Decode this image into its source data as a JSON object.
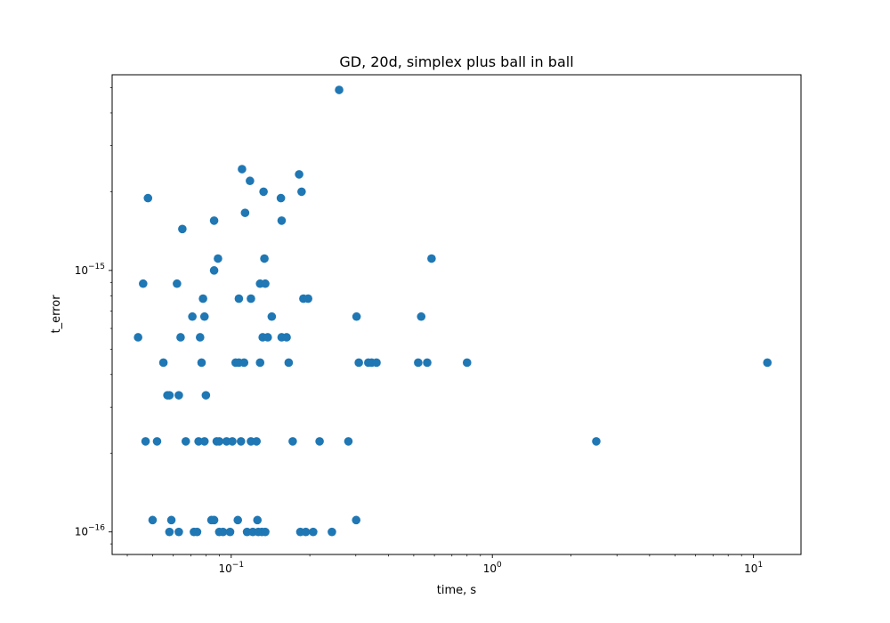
{
  "chart_data": {
    "type": "scatter",
    "title": "GD, 20d, simplex plus ball in ball",
    "xlabel": "time, s",
    "ylabel": "t_error",
    "xscale": "log",
    "yscale": "log",
    "xlim": [
      0.035,
      15.2
    ],
    "ylim": [
      8.2e-17,
      5.6e-15
    ],
    "grid": false,
    "marker_color": "#1f77b4",
    "x_ticks": [
      {
        "value": 0.1,
        "base": "10",
        "exp": "−1"
      },
      {
        "value": 1,
        "base": "10",
        "exp": "0"
      },
      {
        "value": 10,
        "base": "10",
        "exp": "1"
      }
    ],
    "y_ticks": [
      {
        "value": 1e-16,
        "base": "10",
        "exp": "−16"
      },
      {
        "value": 1e-15,
        "base": "10",
        "exp": "−15"
      }
    ],
    "points": [
      {
        "x": 0.044,
        "y": 5.55e-16
      },
      {
        "x": 0.046,
        "y": 8.9e-16
      },
      {
        "x": 0.047,
        "y": 2.22e-16
      },
      {
        "x": 0.048,
        "y": 1.89e-15
      },
      {
        "x": 0.05,
        "y": 1.11e-16
      },
      {
        "x": 0.052,
        "y": 2.22e-16
      },
      {
        "x": 0.055,
        "y": 4.44e-16
      },
      {
        "x": 0.057,
        "y": 3.33e-16
      },
      {
        "x": 0.058,
        "y": 1e-16
      },
      {
        "x": 0.058,
        "y": 3.33e-16
      },
      {
        "x": 0.059,
        "y": 1.11e-16
      },
      {
        "x": 0.062,
        "y": 8.9e-16
      },
      {
        "x": 0.063,
        "y": 1e-16
      },
      {
        "x": 0.063,
        "y": 3.33e-16
      },
      {
        "x": 0.064,
        "y": 5.55e-16
      },
      {
        "x": 0.065,
        "y": 1.44e-15
      },
      {
        "x": 0.067,
        "y": 2.22e-16
      },
      {
        "x": 0.071,
        "y": 6.66e-16
      },
      {
        "x": 0.072,
        "y": 1e-16
      },
      {
        "x": 0.074,
        "y": 1e-16
      },
      {
        "x": 0.075,
        "y": 2.22e-16
      },
      {
        "x": 0.076,
        "y": 5.55e-16
      },
      {
        "x": 0.077,
        "y": 4.44e-16
      },
      {
        "x": 0.078,
        "y": 7.8e-16
      },
      {
        "x": 0.079,
        "y": 6.66e-16
      },
      {
        "x": 0.08,
        "y": 3.33e-16
      },
      {
        "x": 0.079,
        "y": 2.22e-16
      },
      {
        "x": 0.084,
        "y": 1.11e-16
      },
      {
        "x": 0.086,
        "y": 1e-15
      },
      {
        "x": 0.086,
        "y": 1.55e-15
      },
      {
        "x": 0.086,
        "y": 1.11e-16
      },
      {
        "x": 0.088,
        "y": 2.22e-16
      },
      {
        "x": 0.089,
        "y": 1.11e-15
      },
      {
        "x": 0.09,
        "y": 2.22e-16
      },
      {
        "x": 0.09,
        "y": 1e-16
      },
      {
        "x": 0.093,
        "y": 1e-16
      },
      {
        "x": 0.096,
        "y": 2.22e-16
      },
      {
        "x": 0.099,
        "y": 1e-16
      },
      {
        "x": 0.101,
        "y": 2.22e-16
      },
      {
        "x": 0.104,
        "y": 4.44e-16
      },
      {
        "x": 0.106,
        "y": 1.11e-16
      },
      {
        "x": 0.107,
        "y": 7.8e-16
      },
      {
        "x": 0.107,
        "y": 4.44e-16
      },
      {
        "x": 0.109,
        "y": 2.22e-16
      },
      {
        "x": 0.11,
        "y": 2.44e-15
      },
      {
        "x": 0.112,
        "y": 4.44e-16
      },
      {
        "x": 0.113,
        "y": 1.66e-15
      },
      {
        "x": 0.115,
        "y": 1e-16
      },
      {
        "x": 0.118,
        "y": 2.2e-15
      },
      {
        "x": 0.119,
        "y": 7.8e-16
      },
      {
        "x": 0.119,
        "y": 2.22e-16
      },
      {
        "x": 0.121,
        "y": 1e-16
      },
      {
        "x": 0.125,
        "y": 2.22e-16
      },
      {
        "x": 0.126,
        "y": 1.11e-16
      },
      {
        "x": 0.127,
        "y": 1e-16
      },
      {
        "x": 0.129,
        "y": 8.9e-16
      },
      {
        "x": 0.129,
        "y": 4.44e-16
      },
      {
        "x": 0.131,
        "y": 1e-16
      },
      {
        "x": 0.132,
        "y": 5.55e-16
      },
      {
        "x": 0.133,
        "y": 2e-15
      },
      {
        "x": 0.134,
        "y": 1.11e-15
      },
      {
        "x": 0.135,
        "y": 8.9e-16
      },
      {
        "x": 0.135,
        "y": 1e-16
      },
      {
        "x": 0.138,
        "y": 5.55e-16
      },
      {
        "x": 0.143,
        "y": 6.66e-16
      },
      {
        "x": 0.155,
        "y": 1.89e-15
      },
      {
        "x": 0.156,
        "y": 1.55e-15
      },
      {
        "x": 0.156,
        "y": 5.55e-16
      },
      {
        "x": 0.163,
        "y": 5.55e-16
      },
      {
        "x": 0.166,
        "y": 4.44e-16
      },
      {
        "x": 0.172,
        "y": 2.22e-16
      },
      {
        "x": 0.182,
        "y": 2.33e-15
      },
      {
        "x": 0.184,
        "y": 1e-16
      },
      {
        "x": 0.186,
        "y": 2e-15
      },
      {
        "x": 0.189,
        "y": 7.8e-16
      },
      {
        "x": 0.193,
        "y": 1e-16
      },
      {
        "x": 0.197,
        "y": 7.8e-16
      },
      {
        "x": 0.206,
        "y": 1e-16
      },
      {
        "x": 0.218,
        "y": 2.22e-16
      },
      {
        "x": 0.243,
        "y": 1e-16
      },
      {
        "x": 0.259,
        "y": 4.9e-15
      },
      {
        "x": 0.281,
        "y": 2.22e-16
      },
      {
        "x": 0.301,
        "y": 1.11e-16
      },
      {
        "x": 0.302,
        "y": 6.66e-16
      },
      {
        "x": 0.308,
        "y": 4.44e-16
      },
      {
        "x": 0.335,
        "y": 4.44e-16
      },
      {
        "x": 0.345,
        "y": 4.44e-16
      },
      {
        "x": 0.36,
        "y": 4.44e-16
      },
      {
        "x": 0.52,
        "y": 4.44e-16
      },
      {
        "x": 0.534,
        "y": 6.66e-16
      },
      {
        "x": 0.563,
        "y": 4.44e-16
      },
      {
        "x": 0.585,
        "y": 1.11e-15
      },
      {
        "x": 0.8,
        "y": 4.44e-16
      },
      {
        "x": 2.5,
        "y": 2.22e-16
      },
      {
        "x": 11.3,
        "y": 4.44e-16
      }
    ]
  }
}
